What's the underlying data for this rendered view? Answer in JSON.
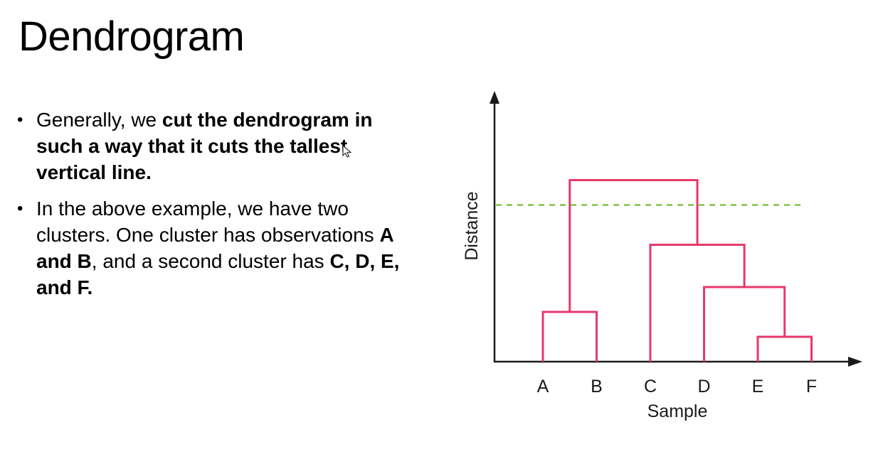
{
  "slide": {
    "title": "Dendrogram"
  },
  "bullets": [
    {
      "segments": [
        {
          "text": "Generally, we ",
          "bold": false
        },
        {
          "text": "cut the dendrogram in such a way that it cuts the tallest vertical line.",
          "bold": true
        }
      ]
    },
    {
      "segments": [
        {
          "text": "In the above example, we have two clusters. One cluster has observations ",
          "bold": false
        },
        {
          "text": "A and B",
          "bold": true
        },
        {
          "text": ", and a second cluster has ",
          "bold": false
        },
        {
          "text": "C, D, E, and F.",
          "bold": true
        }
      ]
    }
  ],
  "dendrogram": {
    "xlabel": "Sample",
    "ylabel": "Distance",
    "leaves": [
      "A",
      "B",
      "C",
      "D",
      "E",
      "F"
    ],
    "merges": [
      {
        "left": "E",
        "right": "F",
        "height": 1.0
      },
      {
        "left": "A",
        "right": "B",
        "height": 2.0
      },
      {
        "left": "D",
        "right": "EF",
        "height": 3.0
      },
      {
        "left": "C",
        "right": "DEF",
        "height": 4.7
      },
      {
        "left": "AB",
        "right": "CDEF",
        "height": 7.3
      }
    ],
    "cut_height": 6.3,
    "colors": {
      "links": "#e8386b",
      "cut_line": "#7cc242",
      "axis": "#1a1a1a"
    }
  },
  "icons": {
    "cursor": "mouse-pointer-icon"
  }
}
